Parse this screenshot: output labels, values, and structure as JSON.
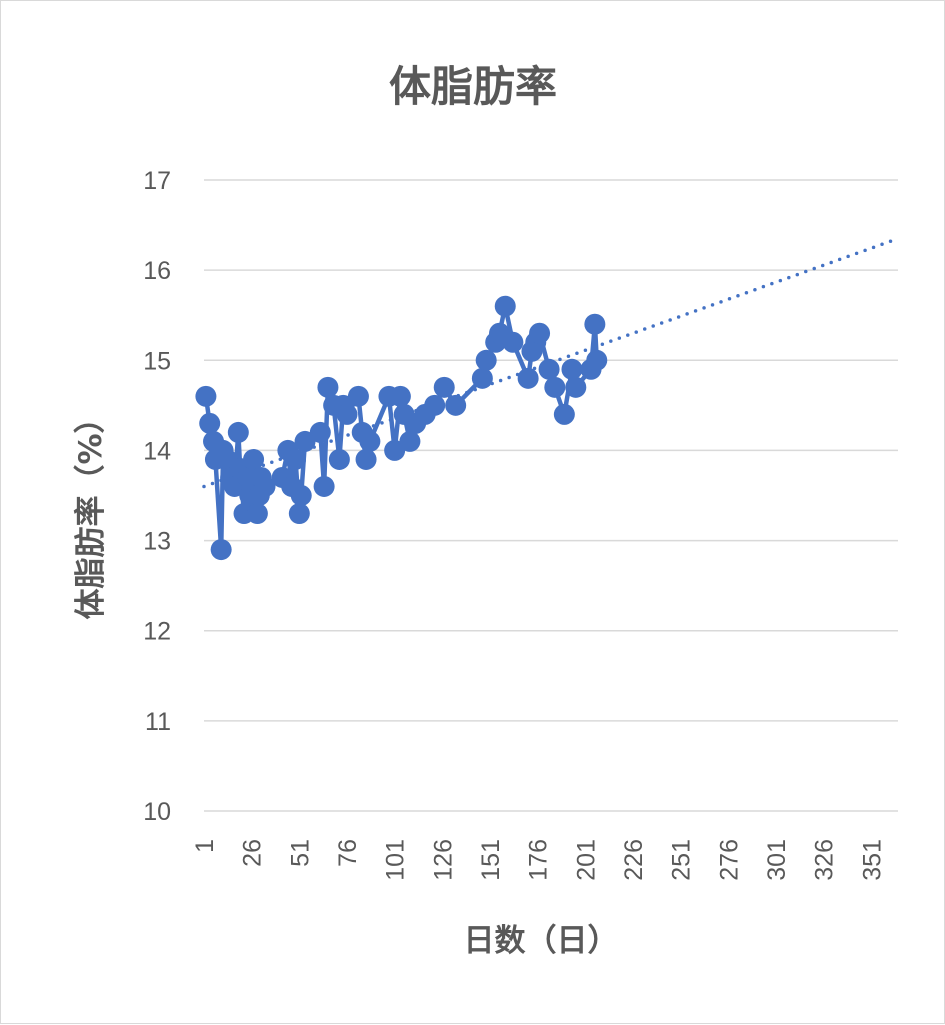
{
  "chart_data": {
    "type": "line",
    "title": "体脂肪率",
    "xlabel": "日数（日）",
    "ylabel": "体脂肪率（%）",
    "xlim": [
      1,
      365
    ],
    "ylim": [
      10,
      17
    ],
    "y_ticks": [
      "10",
      "11",
      "12",
      "13",
      "14",
      "15",
      "16",
      "17"
    ],
    "x_ticks": [
      "1",
      "26",
      "51",
      "76",
      "101",
      "126",
      "151",
      "176",
      "201",
      "226",
      "251",
      "276",
      "301",
      "326",
      "351"
    ],
    "grid": true,
    "legend": "none",
    "series_color": "#4472c4",
    "series": [
      {
        "x": [
          2,
          4,
          6,
          7,
          10,
          11,
          13,
          15,
          17,
          19,
          20,
          22,
          24,
          25,
          27,
          29,
          30,
          31,
          33,
          42,
          45,
          47,
          49,
          51,
          52,
          54,
          62,
          64,
          66,
          69,
          72,
          74,
          76,
          82,
          84,
          86,
          88,
          98,
          101,
          104,
          106,
          109,
          112,
          117,
          122,
          127,
          133,
          147,
          149,
          154,
          156,
          159,
          163,
          171,
          173,
          175,
          177,
          182,
          185,
          190,
          194,
          196,
          204,
          206,
          207
        ],
        "y": [
          14.6,
          14.3,
          14.1,
          13.9,
          12.9,
          14.0,
          13.9,
          13.7,
          13.6,
          14.2,
          13.8,
          13.3,
          13.7,
          13.5,
          13.9,
          13.3,
          13.5,
          13.7,
          13.6,
          13.7,
          14.0,
          13.6,
          13.9,
          13.3,
          13.5,
          14.1,
          14.2,
          13.6,
          14.7,
          14.5,
          13.9,
          14.5,
          14.4,
          14.6,
          14.2,
          13.9,
          14.1,
          14.6,
          14.0,
          14.6,
          14.4,
          14.1,
          14.3,
          14.4,
          14.5,
          14.7,
          14.5,
          14.8,
          15.0,
          15.2,
          15.3,
          15.6,
          15.2,
          14.8,
          15.1,
          15.2,
          15.3,
          14.9,
          14.7,
          14.4,
          14.9,
          14.7,
          14.9,
          15.4,
          15.0
        ]
      }
    ],
    "trendline": {
      "type": "linear",
      "style": "dotted",
      "x_start": 1,
      "x_end": 365,
      "y_start": 13.6,
      "y_end": 16.35
    }
  }
}
